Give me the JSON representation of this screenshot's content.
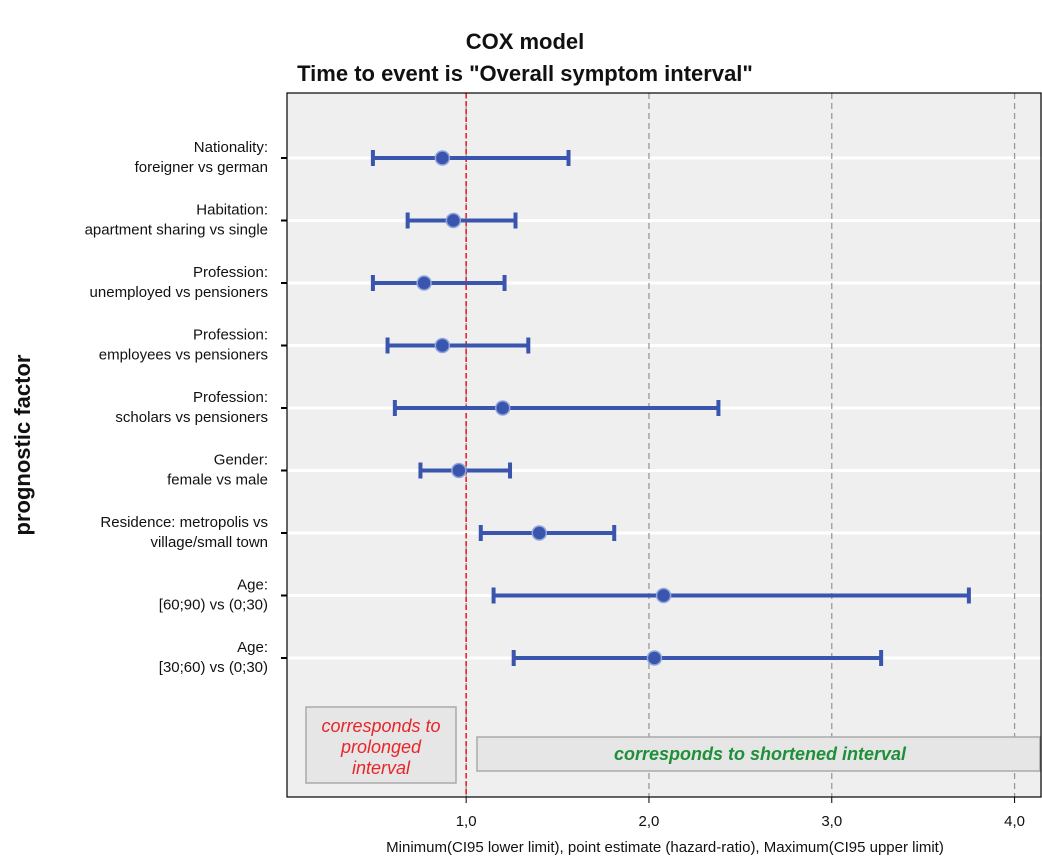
{
  "chart_data": {
    "type": "forest",
    "title": "COX model",
    "subtitle": "Time to event is \"Overall symptom interval\"",
    "x_label": "Minimum(CI95 lower limit), point estimate (hazard-ratio), Maximum(CI95 upper limit)",
    "y_label": "prognostic factor",
    "categories": [
      [
        "Nationality:",
        "foreigner vs german"
      ],
      [
        "Habitation:",
        "apartment sharing vs single"
      ],
      [
        "Profession:",
        "unemployed vs pensioners"
      ],
      [
        "Profession:",
        "employees vs pensioners"
      ],
      [
        "Profession:",
        "scholars vs pensioners"
      ],
      [
        "Gender:",
        "female vs male"
      ],
      [
        "Residence: metropolis vs",
        "village/small town"
      ],
      [
        "Age:",
        "[60;90) vs (0;30)"
      ],
      [
        "Age:",
        "[30;60) vs (0;30)"
      ]
    ],
    "lower": [
      0.49,
      0.68,
      0.49,
      0.57,
      0.61,
      0.75,
      1.08,
      1.15,
      1.26
    ],
    "values": [
      0.87,
      0.93,
      0.77,
      0.87,
      1.2,
      0.96,
      1.4,
      2.08,
      2.03
    ],
    "upper": [
      1.56,
      1.27,
      1.21,
      1.34,
      2.38,
      1.24,
      1.81,
      3.75,
      3.27
    ],
    "color": "#3a55ad",
    "xlim": [
      0.02,
      4.15
    ],
    "xticks": [
      {
        "value": 1,
        "label": "1,0"
      },
      {
        "value": 2,
        "label": "2,0"
      },
      {
        "value": 3,
        "label": "3,0"
      },
      {
        "value": 4,
        "label": "4,0"
      }
    ],
    "reference": 1,
    "reference_color": "#e8262a",
    "grid": true,
    "annotations": [
      {
        "lines": [
          "corresponds to",
          "prolonged",
          "interval"
        ],
        "color": "#e8262a"
      },
      {
        "lines": [
          "corresponds to shortened interval"
        ],
        "color": "#1f8f3a"
      }
    ]
  }
}
